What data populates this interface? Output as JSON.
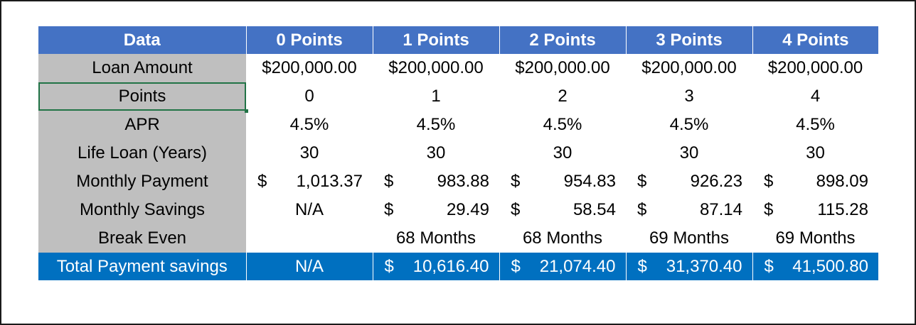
{
  "header": [
    "Data",
    "0 Points",
    "1 Points",
    "2 Points",
    "3 Points",
    "4 Points"
  ],
  "rows": {
    "loan_amount": {
      "label": "Loan Amount",
      "values": [
        "$200,000.00",
        "$200,000.00",
        "$200,000.00",
        "$200,000.00",
        "$200,000.00"
      ]
    },
    "points": {
      "label": "Points",
      "values": [
        "0",
        "1",
        "2",
        "3",
        "4"
      ]
    },
    "apr": {
      "label": "APR",
      "values": [
        "4.5%",
        "4.5%",
        "4.5%",
        "4.5%",
        "4.5%"
      ]
    },
    "life_loan": {
      "label": "Life Loan (Years)",
      "values": [
        "30",
        "30",
        "30",
        "30",
        "30"
      ]
    },
    "monthly_payment": {
      "label": "Monthly Payment",
      "currency": "$",
      "values": [
        "1,013.37",
        "983.88",
        "954.83",
        "926.23",
        "898.09"
      ]
    },
    "monthly_savings": {
      "label": "Monthly Savings",
      "currency": "$",
      "na": "N/A",
      "values": [
        "29.49",
        "58.54",
        "87.14",
        "115.28"
      ]
    },
    "break_even": {
      "label": "Break Even",
      "values": [
        "",
        "68 Months",
        "68 Months",
        "69 Months",
        "69 Months"
      ]
    },
    "total_savings": {
      "label": "Total Payment savings",
      "currency": "$",
      "na": "N/A",
      "values": [
        "10,616.40",
        "21,074.40",
        "31,370.40",
        "41,500.80"
      ]
    }
  },
  "colors": {
    "header_bg": "#4472c4",
    "label_bg": "#bfbfbf",
    "total_bg": "#0070c0",
    "selection": "#217346"
  }
}
